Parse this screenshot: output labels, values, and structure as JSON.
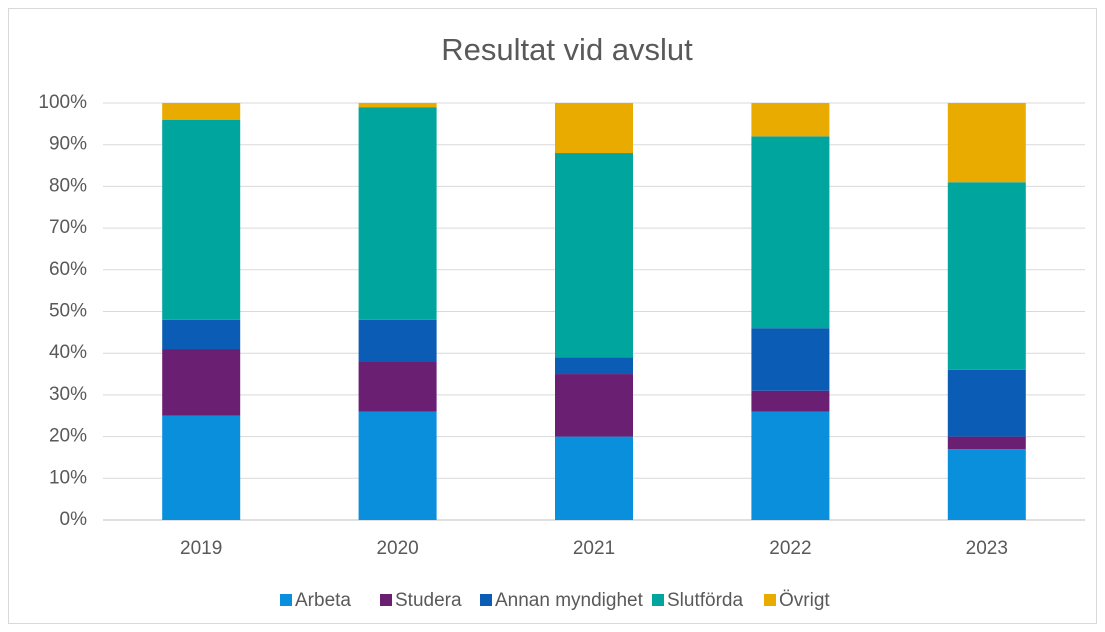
{
  "chart_data": {
    "type": "stacked_bar",
    "title": "Resultat vid avslut",
    "categories": [
      "2019",
      "2020",
      "2021",
      "2022",
      "2023"
    ],
    "series": [
      {
        "name": "Arbeta",
        "color": "#0a8fdc",
        "values": [
          25,
          26,
          20,
          26,
          17
        ]
      },
      {
        "name": "Studera",
        "color": "#6b1f73",
        "values": [
          16,
          12,
          15,
          5,
          3
        ]
      },
      {
        "name": "Annan myndighet",
        "color": "#0b5cb5",
        "values": [
          7,
          10,
          4,
          15,
          16
        ]
      },
      {
        "name": "Slutförda",
        "color": "#00a59e",
        "values": [
          48,
          51,
          49,
          46,
          45
        ]
      },
      {
        "name": "Övrigt",
        "color": "#eaab00",
        "values": [
          4,
          1,
          12,
          8,
          19
        ]
      }
    ],
    "ylim": [
      0,
      100
    ],
    "yticks": [
      {
        "value": 0,
        "label": "0%"
      },
      {
        "value": 10,
        "label": "10%"
      },
      {
        "value": 20,
        "label": "20%"
      },
      {
        "value": 30,
        "label": "30%"
      },
      {
        "value": 40,
        "label": "40%"
      },
      {
        "value": 50,
        "label": "50%"
      },
      {
        "value": 60,
        "label": "60%"
      },
      {
        "value": 70,
        "label": "70%"
      },
      {
        "value": 80,
        "label": "80%"
      },
      {
        "value": 90,
        "label": "90%"
      },
      {
        "value": 100,
        "label": "100%"
      }
    ],
    "grid": true,
    "legend": "bottom"
  }
}
